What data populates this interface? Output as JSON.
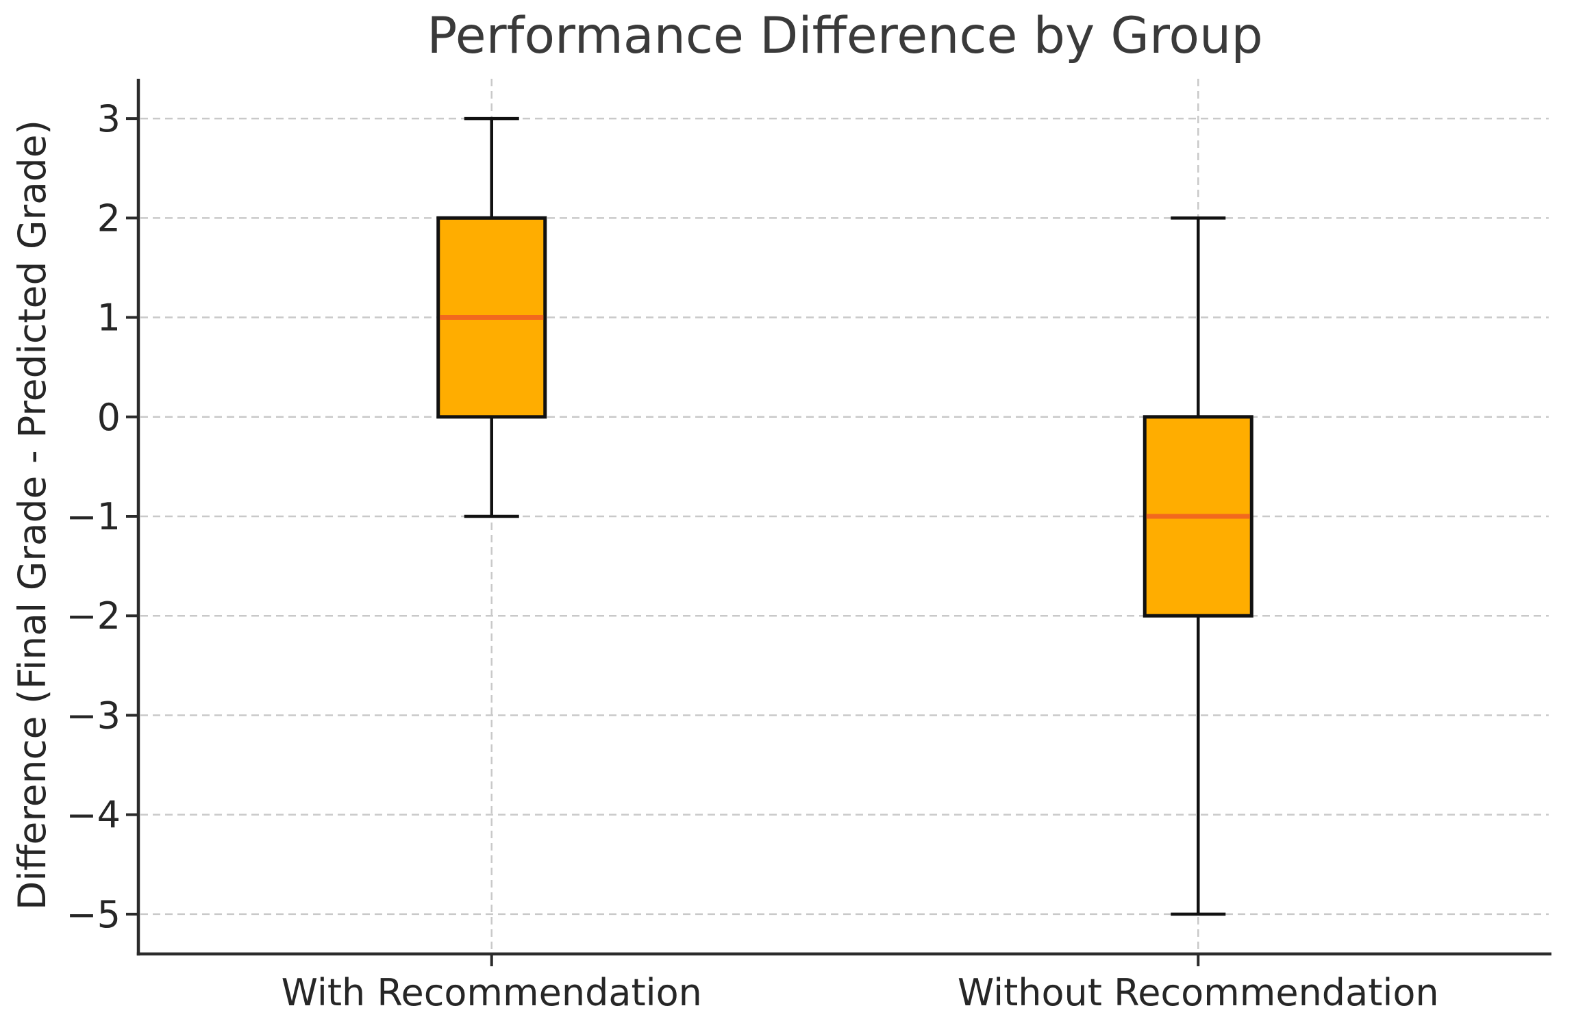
{
  "figure": {
    "background": "#ffffff"
  },
  "chart_data": {
    "type": "box",
    "title": "Performance Difference by Group",
    "xlabel": "",
    "ylabel": "Difference (Final Grade - Predicted Grade)",
    "categories": [
      "With Recommendation",
      "Without Recommendation"
    ],
    "series": [
      {
        "name": "With Recommendation",
        "position": 1,
        "whisker_low": -1,
        "q1": 0,
        "median": 1,
        "q3": 2,
        "whisker_high": 3,
        "outliers": []
      },
      {
        "name": "Without Recommendation",
        "position": 2,
        "whisker_low": -5,
        "q1": -2,
        "median": -1,
        "q3": 0,
        "whisker_high": 2,
        "outliers": []
      }
    ],
    "yticks": [
      {
        "value": 3,
        "label": "3"
      },
      {
        "value": 2,
        "label": "2"
      },
      {
        "value": 1,
        "label": "1"
      },
      {
        "value": 0,
        "label": "0"
      },
      {
        "value": -1,
        "label": "−1"
      },
      {
        "value": -2,
        "label": "−2"
      },
      {
        "value": -3,
        "label": "−3"
      },
      {
        "value": -4,
        "label": "−4"
      },
      {
        "value": -5,
        "label": "−5"
      }
    ],
    "ylim": [
      -5.4,
      3.4
    ],
    "xlim": [
      0.5,
      2.5
    ],
    "legend_position": "none",
    "grid": {
      "horizontal": true,
      "vertical_at_categories": true,
      "style": "dashed"
    },
    "colors": {
      "box_fill": "#ffad00",
      "box_edge": "#111111",
      "median": "#f2691e",
      "whisker": "#111111",
      "grid": "#c9c9c9",
      "spine": "#2b2b2b",
      "tick_text": "#262626",
      "title_text": "#3a3a3a"
    }
  }
}
